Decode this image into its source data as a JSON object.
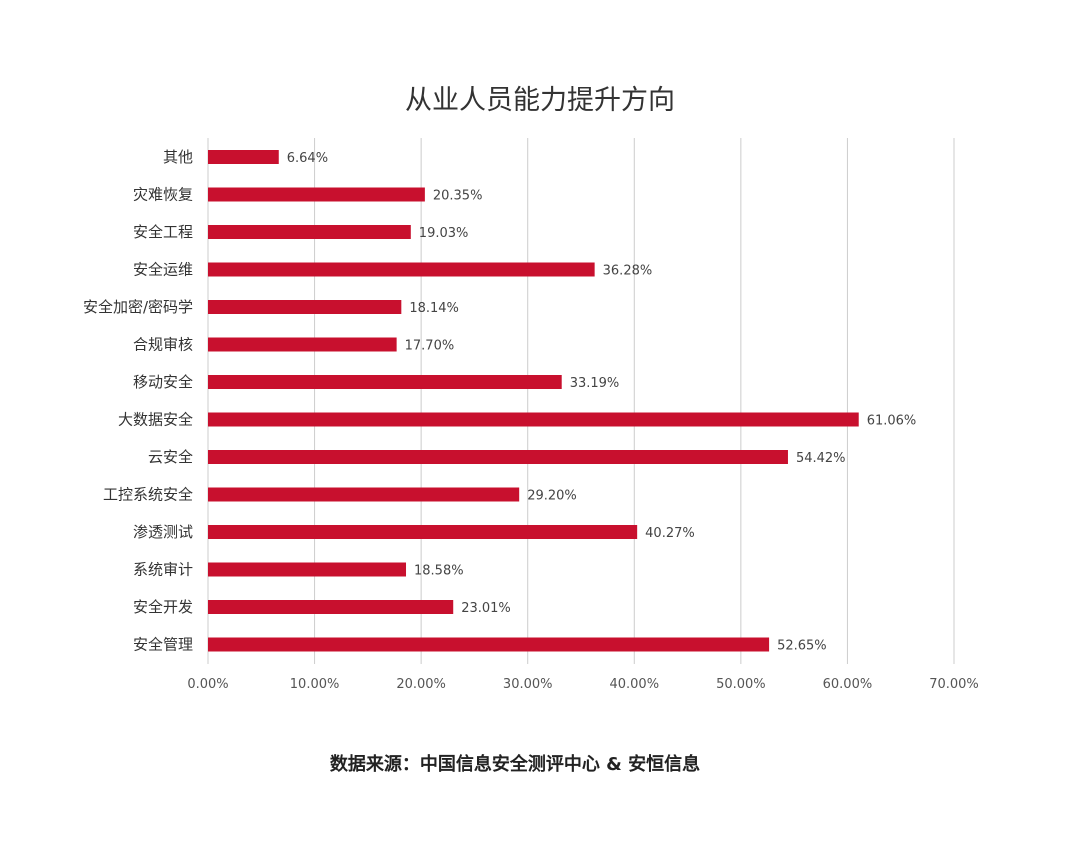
{
  "chart_data": {
    "type": "bar",
    "orientation": "horizontal",
    "title": "从业人员能力提升方向",
    "categories": [
      "其他",
      "灾难恢复",
      "安全工程",
      "安全运维",
      "安全加密/密码学",
      "合规审核",
      "移动安全",
      "大数据安全",
      "云安全",
      "工控系统安全",
      "渗透测试",
      "系统审计",
      "安全开发",
      "安全管理"
    ],
    "values": [
      6.64,
      20.35,
      19.03,
      36.28,
      18.14,
      17.7,
      33.19,
      61.06,
      54.42,
      29.2,
      40.27,
      18.58,
      23.01,
      52.65
    ],
    "value_labels": [
      "6.64%",
      "20.35%",
      "19.03%",
      "36.28%",
      "18.14%",
      "17.70%",
      "33.19%",
      "61.06%",
      "54.42%",
      "29.20%",
      "40.27%",
      "18.58%",
      "23.01%",
      "52.65%"
    ],
    "xticks": [
      0,
      10,
      20,
      30,
      40,
      50,
      60,
      70
    ],
    "xtick_labels": [
      "0.00%",
      "10.00%",
      "20.00%",
      "30.00%",
      "40.00%",
      "50.00%",
      "60.00%",
      "70.00%"
    ],
    "xlim": [
      0,
      70
    ],
    "xlabel": "",
    "ylabel": "",
    "grid": true,
    "bar_color": "#c8102e",
    "grid_color": "#cccccc"
  },
  "footer": {
    "source": "数据来源：中国信息安全测评中心 & 安恒信息"
  }
}
